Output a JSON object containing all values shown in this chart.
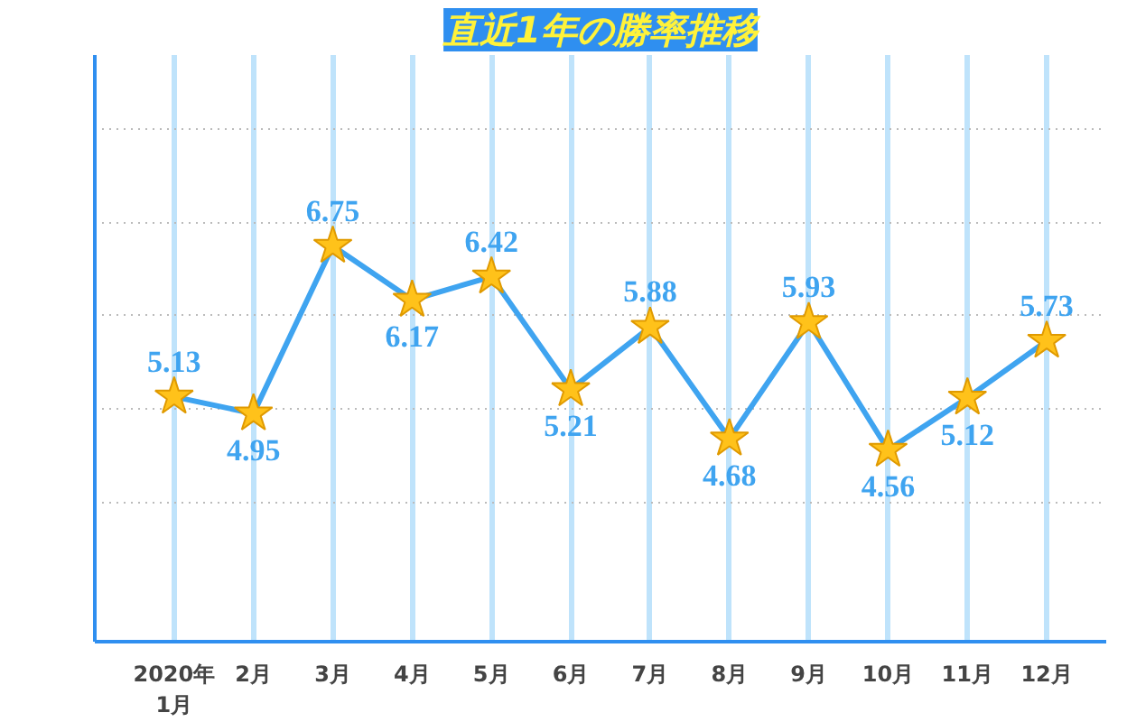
{
  "chart_data": {
    "type": "line",
    "title": "直近1年の勝率推移",
    "categories": [
      "2020年\n1月",
      "2月",
      "3月",
      "4月",
      "5月",
      "6月",
      "7月",
      "8月",
      "9月",
      "10月",
      "11月",
      "12月"
    ],
    "series": [
      {
        "color": "#3fa4f0",
        "values": [
          5.13,
          4.95,
          6.75,
          6.17,
          6.42,
          5.21,
          5.88,
          4.68,
          5.93,
          4.56,
          5.12,
          5.73
        ]
      }
    ],
    "ylim": [
      2.5,
      8.8
    ],
    "yticks": [
      {
        "value": 4,
        "label": null
      },
      {
        "value": 5,
        "label": null
      },
      {
        "value": 6,
        "label": null
      },
      {
        "value": 7,
        "label": null
      },
      {
        "value": 8,
        "label": null
      }
    ],
    "grid": true,
    "marker": "star",
    "data_labels": true,
    "tick_labels": "x"
  }
}
